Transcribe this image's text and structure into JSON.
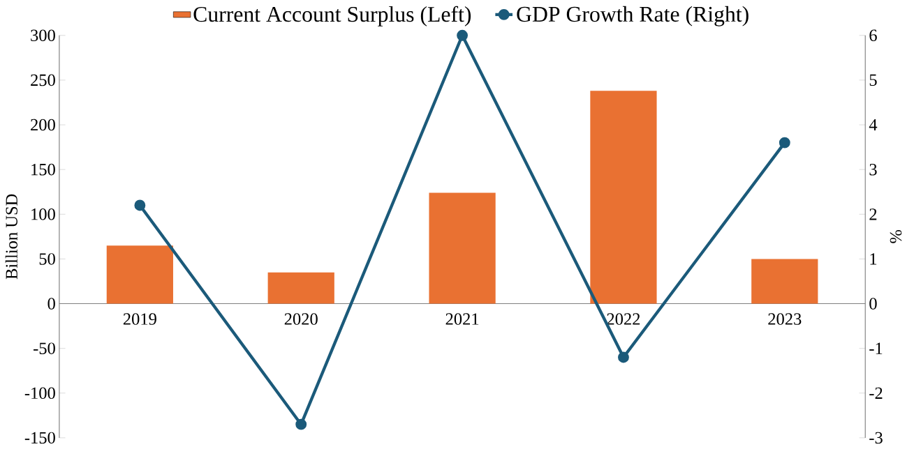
{
  "chart_data": {
    "type": "bar",
    "categories": [
      "2019",
      "2020",
      "2021",
      "2022",
      "2023"
    ],
    "ylabel": "Billion USD",
    "y2label": "%",
    "ylim": [
      -150,
      300
    ],
    "yticks": [
      -150,
      -100,
      -50,
      0,
      50,
      100,
      150,
      200,
      250,
      300
    ],
    "y2lim": [
      -3,
      6
    ],
    "y2ticks": [
      -3,
      -2,
      -1,
      0,
      1,
      2,
      3,
      4,
      5,
      6
    ],
    "legend": "top",
    "marker": "circle",
    "grid": false,
    "series": [
      {
        "name": "Current Account Surplus (Left)",
        "color": "#e97132",
        "values": [
          65,
          35,
          124,
          238,
          50
        ]
      },
      {
        "name": "GDP Growth Rate (Right)",
        "type": "line",
        "axis": "y2",
        "color": "#1b5a7a",
        "values": [
          2.2,
          -2.7,
          6.0,
          -1.2,
          3.6
        ]
      }
    ]
  }
}
